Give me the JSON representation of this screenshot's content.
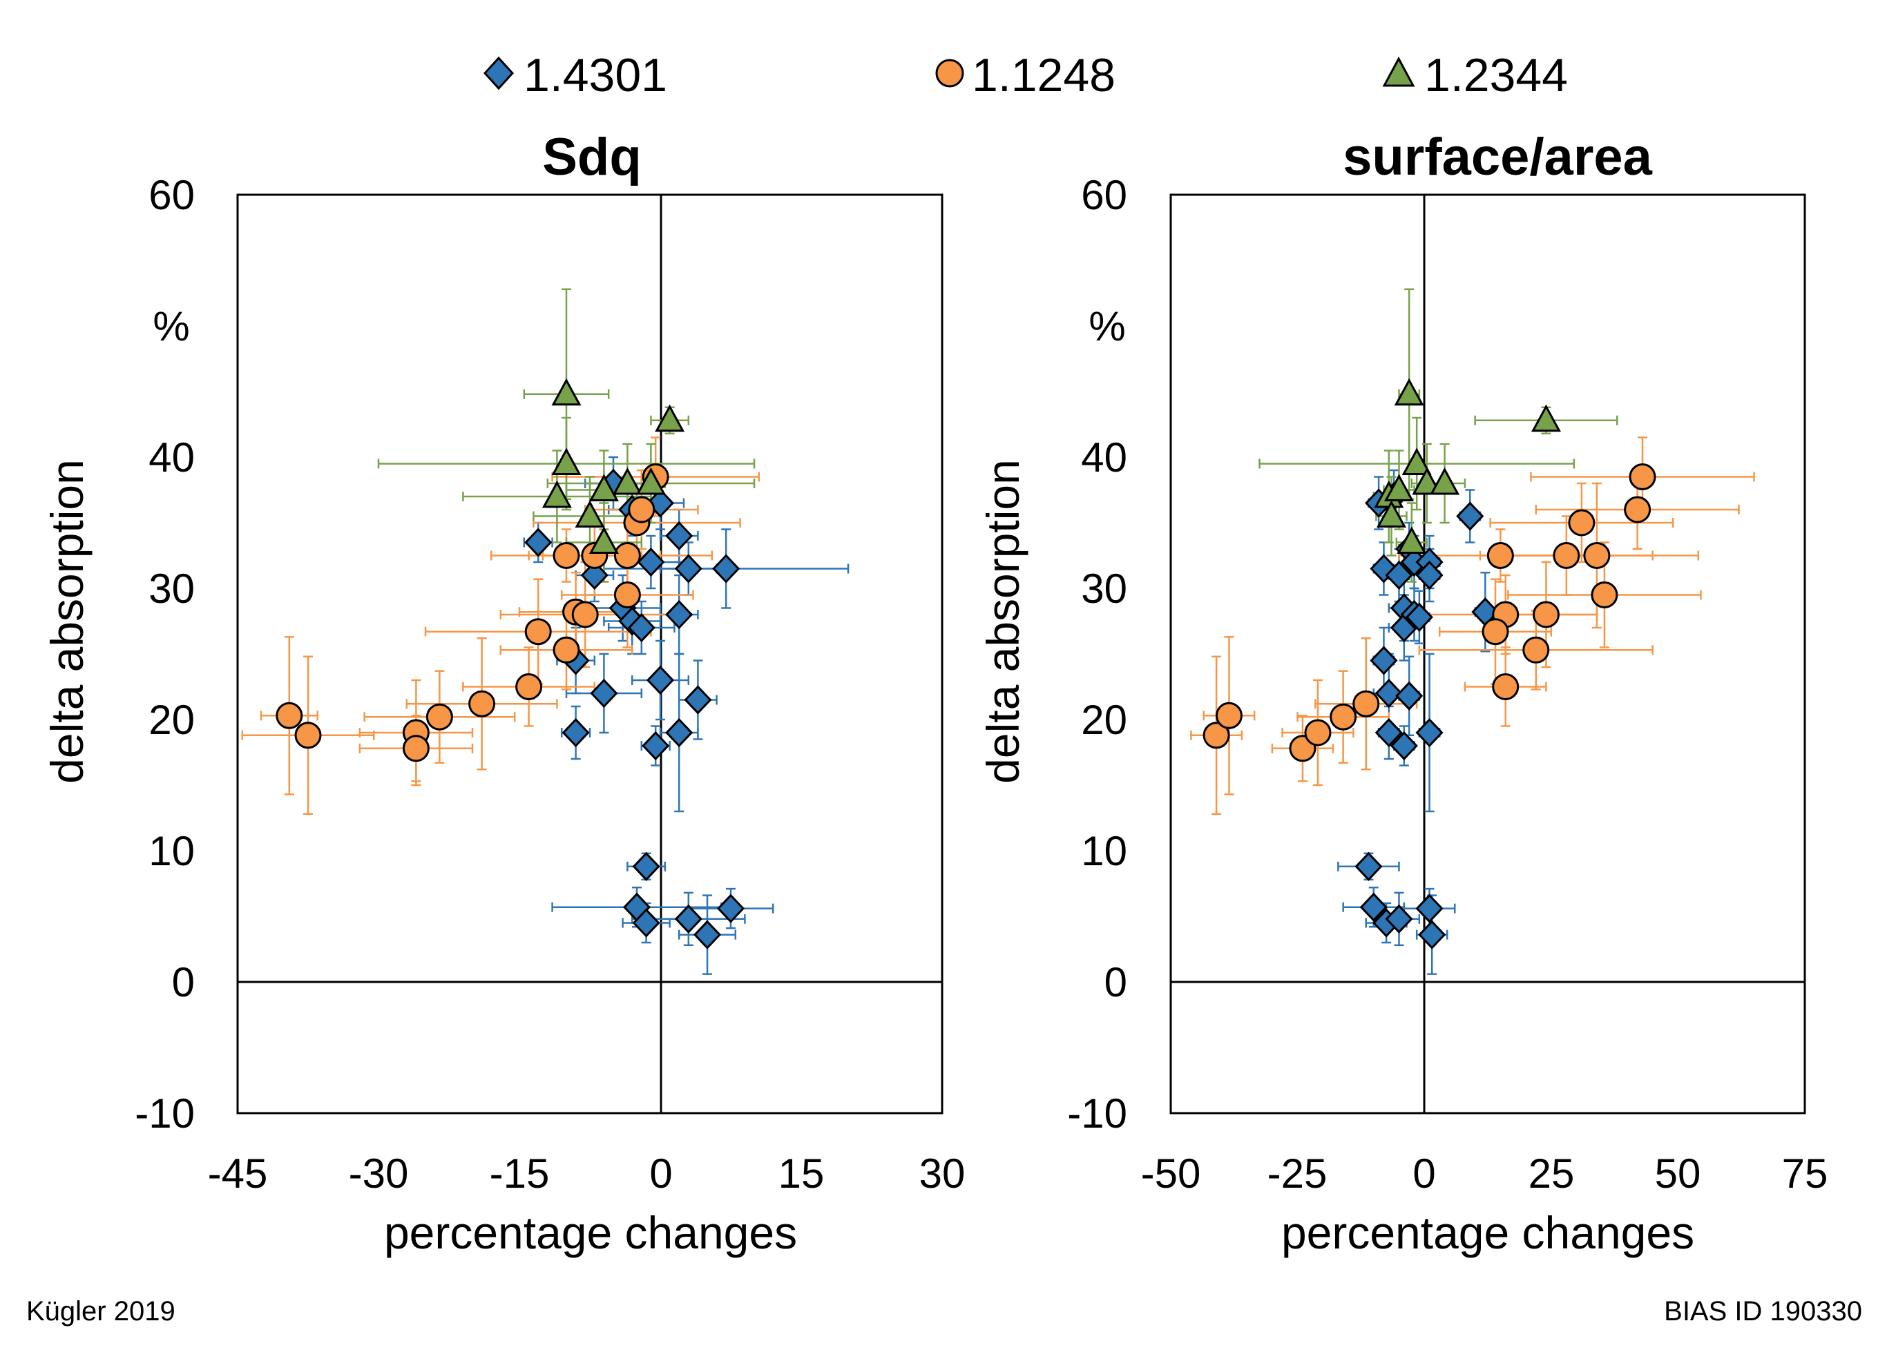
{
  "colors": {
    "blue": "#2e75b6",
    "orange": "#f79646",
    "green": "#77a24a"
  },
  "legend": [
    {
      "label": "1.4301",
      "marker": "diamond",
      "color": "#2e75b6"
    },
    {
      "label": "1.1248",
      "marker": "circle",
      "color": "#f79646"
    },
    {
      "label": "1.2344",
      "marker": "triangle",
      "color": "#77a24a"
    }
  ],
  "footer": {
    "left": "Kügler 2019",
    "right": "BIAS ID 190330"
  },
  "chart_data": [
    {
      "type": "scatter",
      "title": "Sdq",
      "xlabel": "percentage changes",
      "ylabel": "delta absorption",
      "yunit": "%",
      "xlim": [
        -45,
        30
      ],
      "ylim": [
        -10,
        60
      ],
      "xticks": [
        "-45",
        "-30",
        "-15",
        "0",
        "15",
        "30"
      ],
      "yticks": [
        "-10",
        "0",
        "10",
        "20",
        "30",
        "40",
        "60"
      ],
      "series": [
        {
          "name": "1.4301",
          "marker": "diamond",
          "points": [
            [
              -13,
              33.5,
              1.5,
              1.5
            ],
            [
              -9,
              24.5,
              2,
              2.5
            ],
            [
              -9,
              19,
              1.5,
              2
            ],
            [
              -7,
              31,
              2,
              2
            ],
            [
              -6,
              22,
              4,
              3
            ],
            [
              -5,
              38,
              3,
              2
            ],
            [
              -4,
              28.5,
              4,
              2.5
            ],
            [
              -3,
              36,
              2.5,
              2
            ],
            [
              -3,
              27.5,
              3,
              2.5
            ],
            [
              -2,
              27,
              3.5,
              2
            ],
            [
              -1,
              32,
              3,
              2
            ],
            [
              -0.5,
              18,
              1.5,
              1.5
            ],
            [
              0,
              36.5,
              2.5,
              2
            ],
            [
              0,
              23,
              3,
              3
            ],
            [
              2,
              34,
              2,
              2
            ],
            [
              2,
              28,
              2,
              3
            ],
            [
              2,
              19,
              2,
              6
            ],
            [
              3,
              31.5,
              3,
              2
            ],
            [
              4,
              21.5,
              2,
              3
            ],
            [
              7,
              31.5,
              13,
              3
            ],
            [
              -1.5,
              8.8,
              2,
              1
            ],
            [
              -2.5,
              5.7,
              9,
              1.5
            ],
            [
              -1.5,
              4.5,
              2.5,
              1.5
            ],
            [
              3,
              4.8,
              6,
              2
            ],
            [
              5,
              3.6,
              3,
              3
            ],
            [
              7.5,
              5.6,
              4.5,
              1.5
            ]
          ]
        },
        {
          "name": "1.1248",
          "marker": "circle",
          "points": [
            [
              -39.5,
              20.3,
              3,
              6
            ],
            [
              -37.5,
              18.8,
              7,
              6
            ],
            [
              -26,
              19,
              6,
              4
            ],
            [
              -26,
              17.8,
              6,
              2.5
            ],
            [
              -23.5,
              20.2,
              8,
              3.5
            ],
            [
              -19,
              21.2,
              8,
              5
            ],
            [
              -14,
              22.5,
              7,
              3
            ],
            [
              -13,
              26.7,
              12,
              4
            ],
            [
              -10,
              32.5,
              8,
              2
            ],
            [
              -10,
              25.3,
              7,
              3
            ],
            [
              -9,
              28.2,
              6,
              3
            ],
            [
              -8,
              28,
              9,
              4
            ],
            [
              -7,
              32.5,
              7,
              3
            ],
            [
              -3.5,
              32.5,
              9,
              2.5
            ],
            [
              -3.5,
              29.5,
              7,
              4
            ],
            [
              -2.5,
              35,
              11,
              3
            ],
            [
              -2,
              36,
              6,
              3
            ],
            [
              -0.5,
              38.5,
              11,
              3
            ]
          ]
        },
        {
          "name": "1.2344",
          "marker": "triangle",
          "points": [
            [
              -10,
              44.8,
              4.5,
              8
            ],
            [
              -10,
              39.5,
              20,
              3.5
            ],
            [
              -11,
              37,
              10,
              3.5
            ],
            [
              -7.5,
              35.5,
              6,
              3
            ],
            [
              -6,
              37.5,
              4,
              3
            ],
            [
              -6,
              33.5,
              4,
              3
            ],
            [
              -3.5,
              38,
              4,
              3
            ],
            [
              -1,
              38,
              11,
              3
            ],
            [
              1,
              42.8,
              2,
              1
            ]
          ]
        }
      ]
    },
    {
      "type": "scatter",
      "title": "surface/area",
      "xlabel": "percentage changes",
      "ylabel": "delta absorption",
      "yunit": "%",
      "xlim": [
        -50,
        75
      ],
      "ylim": [
        -10,
        60
      ],
      "xticks": [
        "-50",
        "-25",
        "0",
        "25",
        "50",
        "75"
      ],
      "yticks": [
        "-10",
        "0",
        "10",
        "20",
        "30",
        "40",
        "60"
      ],
      "series": [
        {
          "name": "1.4301",
          "marker": "diamond",
          "points": [
            [
              -9,
              36.5,
              2,
              2
            ],
            [
              -8,
              31.5,
              2,
              2
            ],
            [
              -8,
              24.5,
              2,
              2.5
            ],
            [
              -7,
              22,
              3,
              3
            ],
            [
              -7,
              19,
              2,
              2
            ],
            [
              -6,
              37,
              2,
              2
            ],
            [
              -5,
              31,
              2,
              2
            ],
            [
              -4,
              28.5,
              3,
              2.5
            ],
            [
              -4,
              27,
              3,
              2.5
            ],
            [
              -3,
              33,
              2,
              2
            ],
            [
              -2,
              32,
              2,
              2
            ],
            [
              -2,
              28,
              2,
              2
            ],
            [
              -4,
              18,
              2,
              1.5
            ],
            [
              -3,
              21.8,
              2,
              3
            ],
            [
              -1,
              27.8,
              2,
              2
            ],
            [
              1,
              32,
              2,
              2
            ],
            [
              1,
              31,
              2,
              2
            ],
            [
              1,
              19,
              2,
              6
            ],
            [
              9,
              35.5,
              2,
              2
            ],
            [
              12,
              28.2,
              2,
              3
            ],
            [
              -11,
              8.8,
              6,
              1
            ],
            [
              -10,
              5.7,
              6,
              1.5
            ],
            [
              -7.5,
              4.5,
              4,
              1.5
            ],
            [
              -5,
              4.8,
              4,
              2
            ],
            [
              1,
              5.6,
              5,
              1.5
            ],
            [
              1.5,
              3.6,
              3,
              3
            ]
          ]
        },
        {
          "name": "1.1248",
          "marker": "circle",
          "points": [
            [
              -41,
              18.8,
              5,
              6
            ],
            [
              -38.5,
              20.3,
              5,
              6
            ],
            [
              -24,
              17.8,
              6,
              2.5
            ],
            [
              -21,
              19,
              7,
              4
            ],
            [
              -16,
              20.2,
              9,
              3.5
            ],
            [
              -11.5,
              21.2,
              10,
              5
            ],
            [
              15,
              32.5,
              20,
              2
            ],
            [
              16,
              22.5,
              8,
              3
            ],
            [
              16,
              28,
              18,
              3
            ],
            [
              14,
              26.7,
              11,
              4
            ],
            [
              22,
              25.3,
              23,
              3
            ],
            [
              24,
              28,
              10,
              4
            ],
            [
              28,
              32.5,
              17,
              3
            ],
            [
              31,
              35,
              18,
              3
            ],
            [
              34,
              32.5,
              20,
              5.5
            ],
            [
              35.5,
              29.5,
              19,
              4
            ],
            [
              42,
              36,
              20,
              3
            ],
            [
              43,
              38.5,
              22,
              3
            ]
          ]
        },
        {
          "name": "1.2344",
          "marker": "triangle",
          "points": [
            [
              -3,
              44.8,
              2,
              8
            ],
            [
              -1.5,
              39.5,
              31,
              3.5
            ],
            [
              -7,
              37,
              3,
              3.5
            ],
            [
              -6.5,
              35.5,
              3,
              3
            ],
            [
              -5,
              37.5,
              3,
              3
            ],
            [
              -2.5,
              33.5,
              3,
              3
            ],
            [
              0.5,
              38,
              3,
              3
            ],
            [
              4,
              38,
              4,
              3
            ],
            [
              24,
              42.8,
              14,
              1
            ]
          ]
        }
      ]
    }
  ]
}
